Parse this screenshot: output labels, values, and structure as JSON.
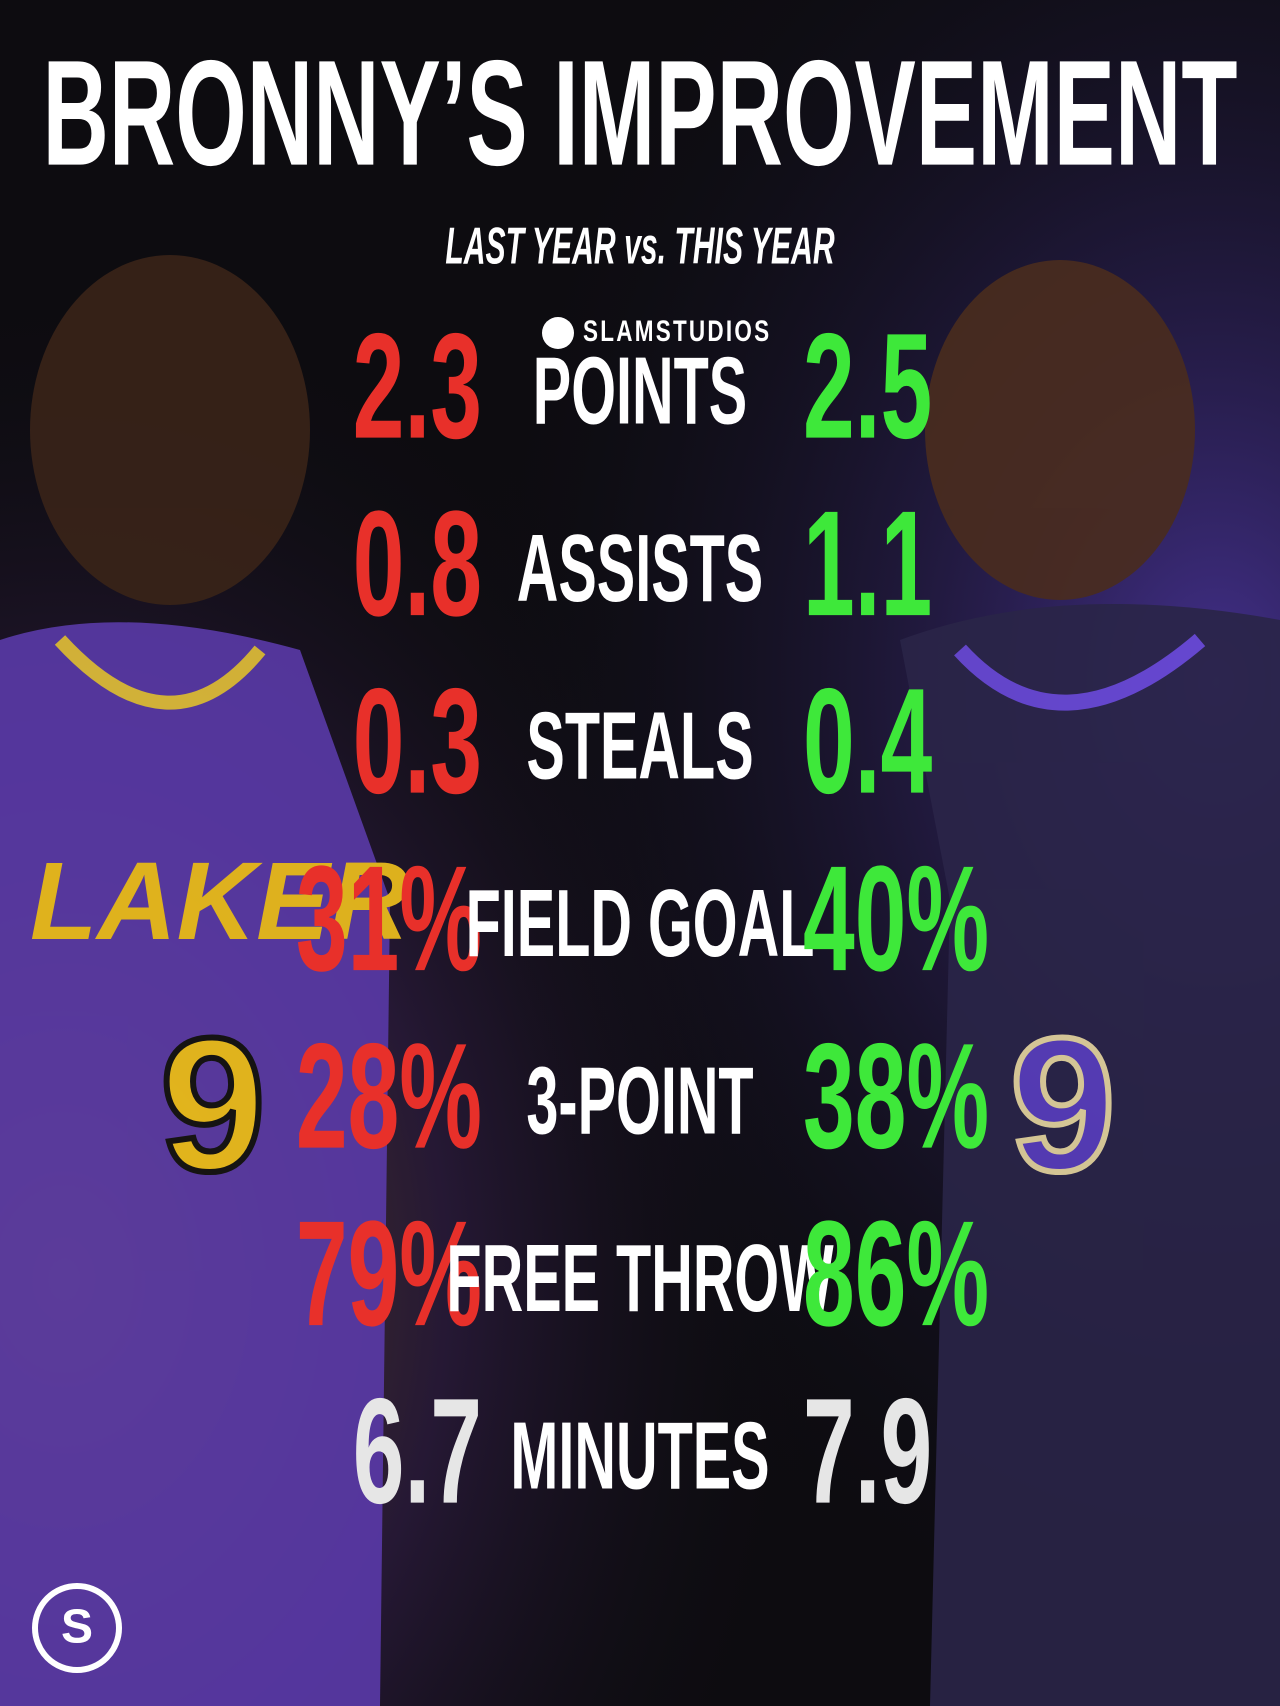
{
  "header": {
    "title": "BRONNY’S IMPROVEMENT",
    "subtitle": "LAST YEAR vs. THIS YEAR",
    "brand": "SLAMSTUDIOS"
  },
  "table": {
    "rows": [
      {
        "label": "POINTS",
        "last": "2.3",
        "this": "2.5"
      },
      {
        "label": "ASSISTS",
        "last": "0.8",
        "this": "1.1"
      },
      {
        "label": "STEALS",
        "last": "0.3",
        "this": "0.4"
      },
      {
        "label": "FIELD GOAL",
        "last": "31%",
        "this": "40%"
      },
      {
        "label": "3-POINT",
        "last": "28%",
        "this": "38%"
      },
      {
        "label": "FREE THROW",
        "last": "79%",
        "this": "86%"
      },
      {
        "label": "MINUTES",
        "last": "6.7",
        "this": "7.9"
      }
    ]
  }
}
